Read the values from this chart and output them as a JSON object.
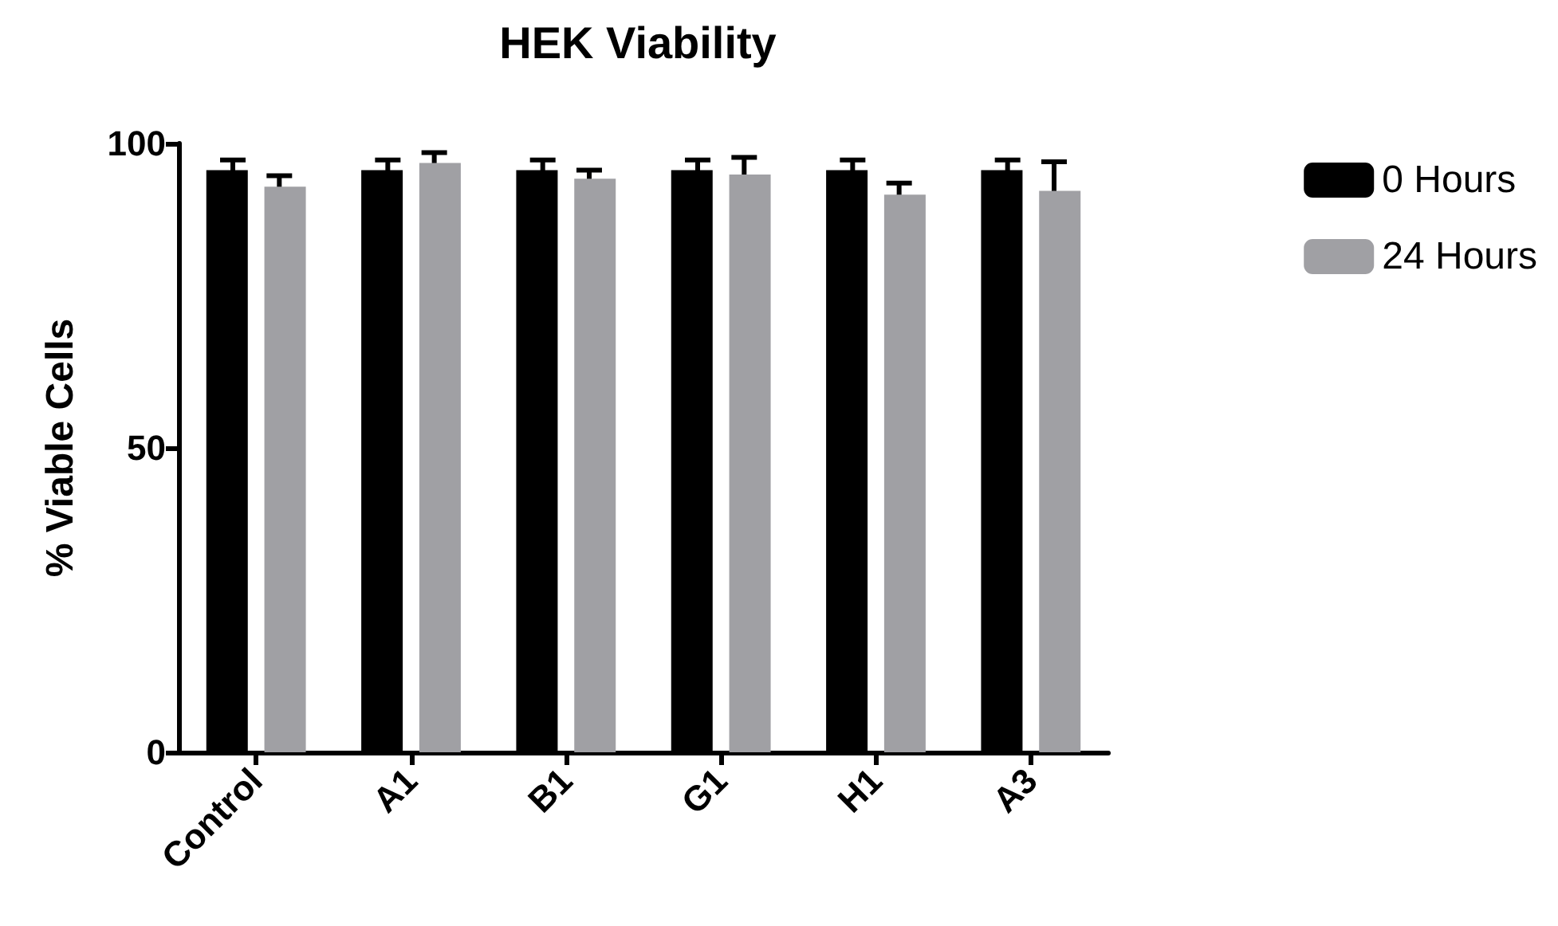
{
  "chart_data": {
    "type": "bar",
    "title": "HEK Viability",
    "ylabel": "% Viable Cells",
    "categories": [
      "Control",
      "A1",
      "B1",
      "G1",
      "H1",
      "A3"
    ],
    "series": [
      {
        "name": "0 Hours",
        "color": "#000000",
        "values": [
          95.6,
          95.6,
          95.6,
          95.6,
          95.6,
          95.6
        ],
        "errors": [
          1.7,
          1.7,
          1.7,
          1.7,
          1.7,
          1.7
        ]
      },
      {
        "name": "24 Hours",
        "color": "#a0a0a4",
        "values": [
          92.9,
          96.8,
          94.2,
          94.9,
          91.6,
          92.2
        ],
        "errors": [
          1.8,
          1.7,
          1.4,
          2.8,
          1.9,
          4.8
        ]
      }
    ],
    "ylim": [
      0,
      100
    ],
    "yticks": [
      0,
      50,
      100
    ],
    "grid": false,
    "legend": "top right"
  }
}
